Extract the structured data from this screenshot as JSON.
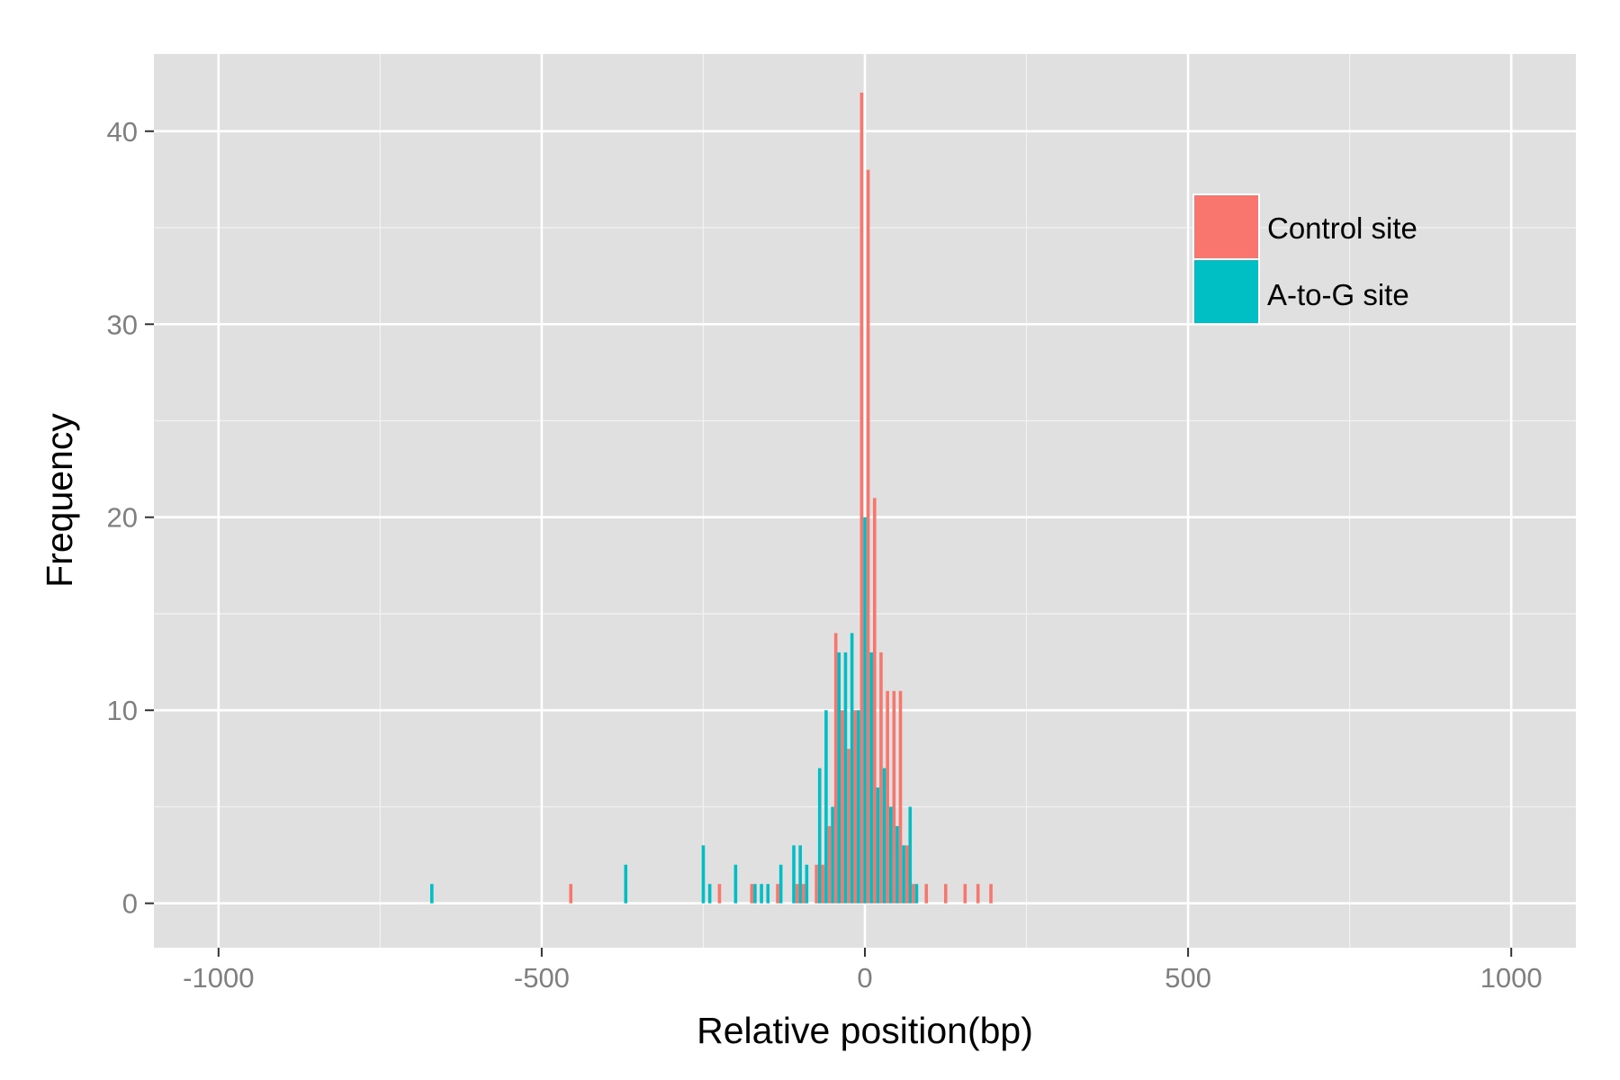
{
  "chart_data": {
    "type": "bar",
    "subtype": "histogram",
    "title": "",
    "xlabel": "Relative position(bp)",
    "ylabel": "Frequency",
    "xlim": [
      -1100,
      1100
    ],
    "ylim": [
      -2.3,
      44
    ],
    "x_ticks": [
      -1000,
      -500,
      0,
      500,
      1000
    ],
    "x_tick_labels": [
      "-1000",
      "-500",
      "0",
      "500",
      "1000"
    ],
    "y_ticks": [
      0,
      10,
      20,
      30,
      40
    ],
    "y_tick_labels": [
      "0",
      "10",
      "20",
      "30",
      "40"
    ],
    "bin_width": 5,
    "grid": true,
    "legend_position": "top-right",
    "series": [
      {
        "name": "Control site",
        "color": "#F8766D",
        "points": [
          [
            -455,
            1
          ],
          [
            -225,
            1
          ],
          [
            -175,
            1
          ],
          [
            -135,
            1
          ],
          [
            -105,
            1
          ],
          [
            -95,
            1
          ],
          [
            -75,
            2
          ],
          [
            -65,
            2
          ],
          [
            -55,
            4
          ],
          [
            -45,
            14
          ],
          [
            -35,
            10
          ],
          [
            -25,
            8
          ],
          [
            -15,
            10
          ],
          [
            -5,
            42
          ],
          [
            5,
            38
          ],
          [
            15,
            21
          ],
          [
            25,
            13
          ],
          [
            35,
            11
          ],
          [
            45,
            11
          ],
          [
            55,
            11
          ],
          [
            65,
            3
          ],
          [
            75,
            1
          ],
          [
            95,
            1
          ],
          [
            125,
            1
          ],
          [
            155,
            1
          ],
          [
            175,
            1
          ],
          [
            195,
            1
          ]
        ]
      },
      {
        "name": "A-to-G site",
        "color": "#00BFC4",
        "points": [
          [
            -670,
            1
          ],
          [
            -370,
            2
          ],
          [
            -250,
            3
          ],
          [
            -240,
            1
          ],
          [
            -200,
            2
          ],
          [
            -170,
            1
          ],
          [
            -160,
            1
          ],
          [
            -150,
            1
          ],
          [
            -130,
            2
          ],
          [
            -110,
            3
          ],
          [
            -100,
            3
          ],
          [
            -90,
            2
          ],
          [
            -70,
            7
          ],
          [
            -60,
            10
          ],
          [
            -50,
            5
          ],
          [
            -40,
            13
          ],
          [
            -30,
            13
          ],
          [
            -20,
            14
          ],
          [
            -10,
            10
          ],
          [
            0,
            20
          ],
          [
            10,
            13
          ],
          [
            20,
            6
          ],
          [
            30,
            7
          ],
          [
            40,
            5
          ],
          [
            50,
            4
          ],
          [
            60,
            3
          ],
          [
            70,
            5
          ],
          [
            80,
            1
          ]
        ]
      }
    ]
  }
}
